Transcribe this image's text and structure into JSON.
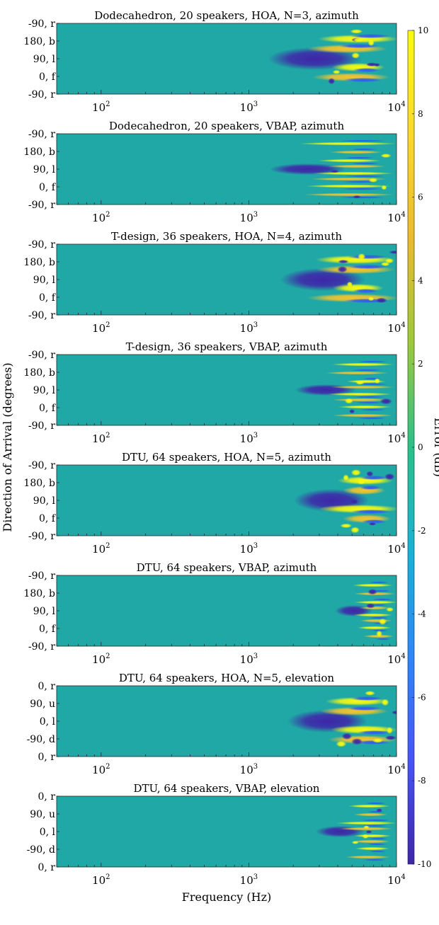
{
  "figure": {
    "ylabel": "Direction of Arrival (degrees)",
    "xlabel": "Frequency (Hz)",
    "colorbar": {
      "label": "Error (dB)",
      "ticks": [
        "10",
        "8",
        "6",
        "4",
        "2",
        "0",
        "-2",
        "-4",
        "-6",
        "-8",
        "-10"
      ]
    }
  },
  "chart_data": [
    {
      "type": "heatmap",
      "title": "Dodecahedron, 20 speakers, HOA, N=3, azimuth",
      "xscale": "log",
      "xlim": [
        50,
        10000
      ],
      "xticks": [
        "10^2",
        "10^3",
        "10^4"
      ],
      "yticks": [
        "-90, r",
        "180, b",
        "90, l",
        "0, f",
        "-90, r"
      ],
      "clim": [
        -10,
        10
      ]
    },
    {
      "type": "heatmap",
      "title": "Dodecahedron, 20 speakers, VBAP, azimuth",
      "xscale": "log",
      "xlim": [
        50,
        10000
      ],
      "xticks": [
        "10^2",
        "10^3",
        "10^4"
      ],
      "yticks": [
        "-90, r",
        "180, b",
        "90, l",
        "0, f",
        "-90, r"
      ],
      "clim": [
        -10,
        10
      ]
    },
    {
      "type": "heatmap",
      "title": "T-design, 36 speakers, HOA, N=4, azimuth",
      "xscale": "log",
      "xlim": [
        50,
        10000
      ],
      "xticks": [
        "10^2",
        "10^3",
        "10^4"
      ],
      "yticks": [
        "-90, r",
        "180, b",
        "90, l",
        "0, f",
        "-90, r"
      ],
      "clim": [
        -10,
        10
      ]
    },
    {
      "type": "heatmap",
      "title": "T-design, 36 speakers, VBAP, azimuth",
      "xscale": "log",
      "xlim": [
        50,
        10000
      ],
      "xticks": [
        "10^2",
        "10^3",
        "10^4"
      ],
      "yticks": [
        "-90, r",
        "180, b",
        "90, l",
        "0, f",
        "-90, r"
      ],
      "clim": [
        -10,
        10
      ]
    },
    {
      "type": "heatmap",
      "title": "DTU, 64 speakers, HOA, N=5, azimuth",
      "xscale": "log",
      "xlim": [
        50,
        10000
      ],
      "xticks": [
        "10^2",
        "10^3",
        "10^4"
      ],
      "yticks": [
        "-90, r",
        "180, b",
        "90, l",
        "0, f",
        "-90, r"
      ],
      "clim": [
        -10,
        10
      ]
    },
    {
      "type": "heatmap",
      "title": "DTU, 64 speakers, VBAP, azimuth",
      "xscale": "log",
      "xlim": [
        50,
        10000
      ],
      "xticks": [
        "10^2",
        "10^3",
        "10^4"
      ],
      "yticks": [
        "-90, r",
        "180, b",
        "90, l",
        "0, f",
        "-90, r"
      ],
      "clim": [
        -10,
        10
      ]
    },
    {
      "type": "heatmap",
      "title": "DTU, 64 speakers, HOA, N=5, elevation",
      "xscale": "log",
      "xlim": [
        50,
        10000
      ],
      "xticks": [
        "10^2",
        "10^3",
        "10^4"
      ],
      "yticks": [
        "0, r",
        "90, u",
        "0, l",
        "-90, d",
        "0, r"
      ],
      "clim": [
        -10,
        10
      ]
    },
    {
      "type": "heatmap",
      "title": "DTU, 64 speakers, VBAP, elevation",
      "xscale": "log",
      "xlim": [
        50,
        10000
      ],
      "xticks": [
        "10^2",
        "10^3",
        "10^4"
      ],
      "yticks": [
        "0, r",
        "90, u",
        "0, l",
        "-90, d",
        "0, r"
      ],
      "clim": [
        -10,
        10
      ]
    }
  ],
  "colors": {
    "background": "#1fa8a5",
    "colormap": [
      "#3e26a8",
      "#4755f6",
      "#2e87f7",
      "#1ab1d5",
      "#2bc08a",
      "#9cc93c",
      "#eaba30",
      "#fbd82c",
      "#f9fb0e"
    ]
  }
}
